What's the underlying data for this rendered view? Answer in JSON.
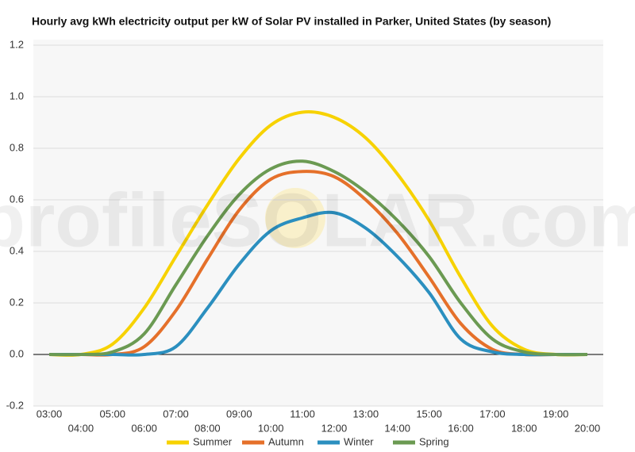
{
  "chart_data": {
    "type": "line",
    "title": "Hourly avg kWh electricity output per kW of Solar PV installed in Parker, United States (by season)",
    "watermark": "profileSOLAR.com",
    "categories": [
      "03:00",
      "04:00",
      "05:00",
      "06:00",
      "07:00",
      "08:00",
      "09:00",
      "10:00",
      "11:00",
      "12:00",
      "13:00",
      "14:00",
      "15:00",
      "16:00",
      "17:00",
      "18:00",
      "19:00",
      "20:00"
    ],
    "series": [
      {
        "name": "Summer",
        "color": "#f7d200",
        "values": [
          0,
          0,
          0.04,
          0.18,
          0.38,
          0.58,
          0.76,
          0.89,
          0.94,
          0.92,
          0.84,
          0.7,
          0.52,
          0.3,
          0.11,
          0.02,
          0,
          0
        ]
      },
      {
        "name": "Autumn",
        "color": "#e5702a",
        "values": [
          0,
          0,
          0,
          0.03,
          0.17,
          0.37,
          0.56,
          0.68,
          0.71,
          0.69,
          0.6,
          0.47,
          0.3,
          0.12,
          0.02,
          0,
          0,
          0
        ]
      },
      {
        "name": "Winter",
        "color": "#2b8fbf",
        "values": [
          0,
          0,
          0,
          0,
          0.03,
          0.18,
          0.35,
          0.48,
          0.53,
          0.55,
          0.49,
          0.38,
          0.24,
          0.06,
          0.01,
          0,
          0,
          0
        ]
      },
      {
        "name": "Spring",
        "color": "#6b9a52",
        "values": [
          0,
          0,
          0.01,
          0.08,
          0.27,
          0.46,
          0.62,
          0.72,
          0.75,
          0.71,
          0.63,
          0.52,
          0.38,
          0.2,
          0.06,
          0.01,
          0,
          0
        ]
      }
    ],
    "ylim": [
      -0.2,
      1.2
    ],
    "yticks": [
      -0.2,
      {
        "value": 0,
        "label": "0.0"
      },
      0.2,
      0.4,
      0.6,
      0.8,
      {
        "value": 1,
        "label": "1.0"
      },
      1.2
    ],
    "grid": true,
    "legend": "bottom"
  }
}
